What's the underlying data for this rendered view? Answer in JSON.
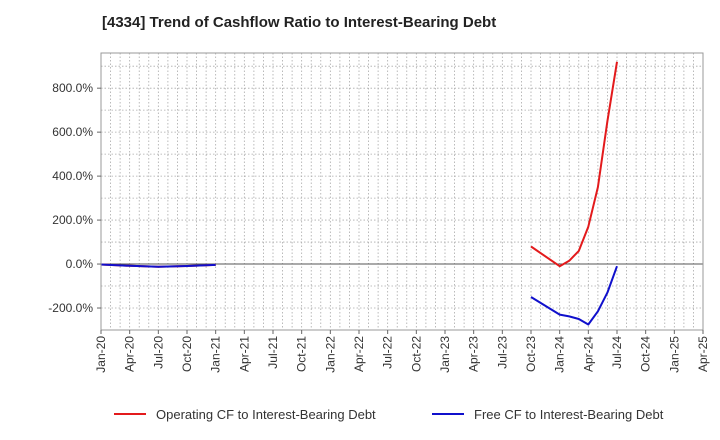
{
  "chart_data": {
    "type": "line",
    "title": "[4334]  Trend of Cashflow Ratio to Interest-Bearing Debt",
    "xlabel": "",
    "ylabel": "",
    "ylim": [
      -300,
      960
    ],
    "yticks": [
      -200,
      0,
      200,
      400,
      600,
      800
    ],
    "ytick_labels": [
      "-200.0%",
      "0.0%",
      "200.0%",
      "400.0%",
      "600.0%",
      "800.0%"
    ],
    "x_range_months": [
      0,
      63
    ],
    "xticks": [
      0,
      3,
      6,
      9,
      12,
      15,
      18,
      21,
      24,
      27,
      30,
      33,
      36,
      39,
      42,
      45,
      48,
      51,
      54,
      57,
      60,
      63
    ],
    "xtick_labels": [
      "Jan-20",
      "Apr-20",
      "Jul-20",
      "Oct-20",
      "Jan-21",
      "Apr-21",
      "Jul-21",
      "Oct-21",
      "Jan-22",
      "Apr-22",
      "Jul-22",
      "Oct-22",
      "Jan-23",
      "Apr-23",
      "Jul-23",
      "Oct-23",
      "Jan-24",
      "Apr-24",
      "Jul-24",
      "Oct-24",
      "Jan-25",
      "Apr-25"
    ],
    "grid": true,
    "legend_position": "bottom",
    "series": [
      {
        "name": "Operating CF to Interest-Bearing Debt",
        "color": "#e31a1c",
        "segments": [
          {
            "x": [
              0,
              3,
              6,
              9,
              12
            ],
            "y": [
              -2,
              -8,
              -12,
              -9,
              -4
            ]
          },
          {
            "x": [
              45,
              48,
              49,
              50,
              51,
              52,
              53,
              54
            ],
            "y": [
              80,
              -10,
              15,
              60,
              170,
              350,
              650,
              920
            ]
          }
        ]
      },
      {
        "name": "Free CF to Interest-Bearing Debt",
        "color": "#1010cc",
        "segments": [
          {
            "x": [
              0,
              3,
              6,
              9,
              12
            ],
            "y": [
              -2,
              -8,
              -12,
              -9,
              -4
            ]
          },
          {
            "x": [
              45,
              48,
              49,
              50,
              51,
              52,
              53,
              54
            ],
            "y": [
              -150,
              -230,
              -238,
              -250,
              -275,
              -215,
              -130,
              -10
            ]
          }
        ]
      }
    ]
  }
}
